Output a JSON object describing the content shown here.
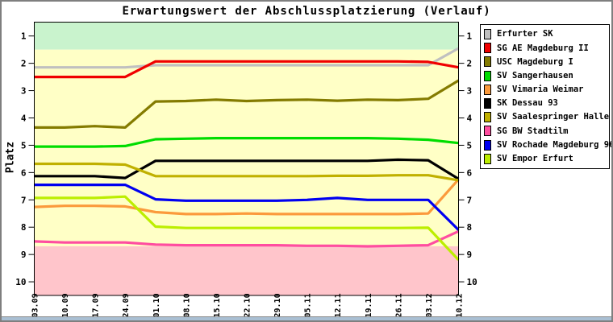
{
  "chart_data": {
    "type": "line",
    "title": "Erwartungswert der Abschlussplatzierung (Verlauf)",
    "ylabel": "Platz",
    "ylim": [
      10.55,
      0.45
    ],
    "y_axis_inverted": true,
    "grid": false,
    "legend_position": "right",
    "y_ticks": [
      1,
      2,
      3,
      4,
      5,
      6,
      7,
      8,
      9,
      10
    ],
    "x_labels": [
      "03.09",
      "10.09",
      "17.09",
      "24.09",
      "01.10",
      "08.10",
      "15.10",
      "22.10",
      "29.10",
      "05.11",
      "12.11",
      "19.11",
      "26.11",
      "03.12",
      "10.12"
    ],
    "zones": [
      {
        "name": "top",
        "from": 0.45,
        "to": 1.5,
        "color": "#c9f3cd"
      },
      {
        "name": "middle",
        "from": 1.5,
        "to": 8.7,
        "color": "#ffffc6"
      },
      {
        "name": "bottom",
        "from": 8.7,
        "to": 10.55,
        "color": "#ffc5cb"
      }
    ],
    "series": [
      {
        "name": "Erfurter SK",
        "color": "#c0c0c0",
        "values": [
          2.15,
          2.15,
          2.15,
          2.15,
          2.07,
          2.07,
          2.07,
          2.07,
          2.07,
          2.07,
          2.07,
          2.07,
          2.07,
          2.07,
          1.45
        ]
      },
      {
        "name": "SG AE Magdeburg II",
        "color": "#f00000",
        "values": [
          2.5,
          2.5,
          2.5,
          2.5,
          1.93,
          1.93,
          1.93,
          1.93,
          1.93,
          1.93,
          1.93,
          1.93,
          1.93,
          1.95,
          2.15
        ]
      },
      {
        "name": "USC Magdeburg I",
        "color": "#847b00",
        "values": [
          4.35,
          4.35,
          4.3,
          4.35,
          3.4,
          3.38,
          3.33,
          3.38,
          3.35,
          3.33,
          3.37,
          3.33,
          3.35,
          3.3,
          2.63
        ]
      },
      {
        "name": "SV Sangerhausen",
        "color": "#00dd00",
        "values": [
          5.05,
          5.05,
          5.05,
          5.03,
          4.78,
          4.76,
          4.74,
          4.74,
          4.74,
          4.74,
          4.74,
          4.74,
          4.76,
          4.8,
          4.92
        ]
      },
      {
        "name": "SV Vimaria Weimar",
        "color": "#fb9a3c",
        "values": [
          7.26,
          7.22,
          7.22,
          7.24,
          7.45,
          7.52,
          7.52,
          7.5,
          7.52,
          7.52,
          7.52,
          7.52,
          7.52,
          7.5,
          6.25
        ]
      },
      {
        "name": "SK Dessau 93",
        "color": "#000000",
        "values": [
          6.13,
          6.13,
          6.13,
          6.2,
          5.57,
          5.57,
          5.57,
          5.57,
          5.57,
          5.57,
          5.57,
          5.57,
          5.53,
          5.55,
          6.23
        ]
      },
      {
        "name": "SV Saalespringer Halle",
        "color": "#c0b000",
        "values": [
          5.68,
          5.68,
          5.68,
          5.71,
          6.13,
          6.13,
          6.13,
          6.13,
          6.13,
          6.13,
          6.12,
          6.12,
          6.1,
          6.1,
          6.28
        ]
      },
      {
        "name": "SG BW Stadtilm",
        "color": "#ff4da0",
        "values": [
          8.52,
          8.56,
          8.56,
          8.56,
          8.64,
          8.66,
          8.66,
          8.66,
          8.66,
          8.68,
          8.68,
          8.7,
          8.68,
          8.66,
          8.15
        ]
      },
      {
        "name": "SV Rochade Magdeburg 96",
        "color": "#0000f0",
        "values": [
          6.45,
          6.45,
          6.45,
          6.45,
          6.98,
          7.03,
          7.03,
          7.03,
          7.03,
          7.0,
          6.93,
          7.0,
          7.0,
          7.0,
          8.1
        ]
      },
      {
        "name": "SV Empor Erfurt",
        "color": "#bcee00",
        "values": [
          6.93,
          6.93,
          6.93,
          6.88,
          7.98,
          8.03,
          8.03,
          8.03,
          8.03,
          8.03,
          8.03,
          8.03,
          8.03,
          8.02,
          9.2
        ]
      }
    ]
  }
}
